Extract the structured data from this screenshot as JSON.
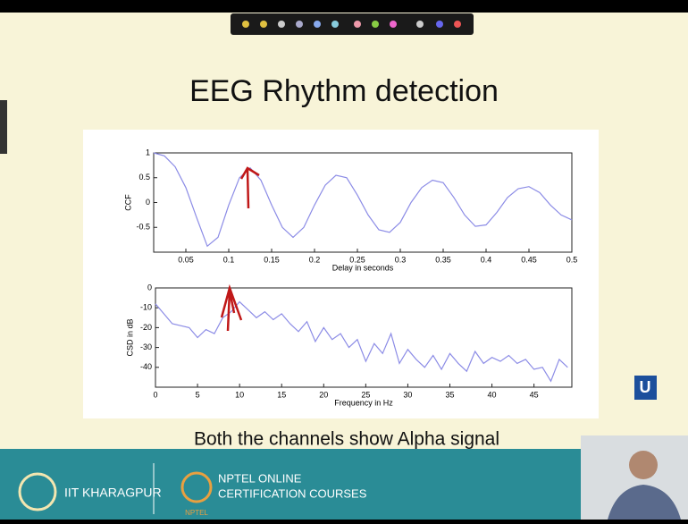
{
  "slide": {
    "title": "EEG Rhythm detection",
    "caption": "Both the channels show Alpha signal"
  },
  "footer": {
    "institute": "IIT KHARAGPUR",
    "program_line1": "NPTEL ONLINE",
    "program_line2": "CERTIFICATION COURSES",
    "logo_text": "NPTEL"
  },
  "chart_data": [
    {
      "type": "line",
      "x_label": "Delay in seconds",
      "y_label": "CCF",
      "color": "#8c8ce6",
      "x": [
        0.0125,
        0.025,
        0.0375,
        0.05,
        0.0625,
        0.075,
        0.0875,
        0.1,
        0.1125,
        0.125,
        0.1375,
        0.15,
        0.1625,
        0.175,
        0.1875,
        0.2,
        0.2125,
        0.225,
        0.2375,
        0.25,
        0.2625,
        0.275,
        0.2875,
        0.3,
        0.3125,
        0.325,
        0.3375,
        0.35,
        0.3625,
        0.375,
        0.3875,
        0.4,
        0.4125,
        0.425,
        0.4375,
        0.45,
        0.4625,
        0.475,
        0.4875,
        0.5
      ],
      "values": [
        1.0,
        0.94,
        0.72,
        0.3,
        -0.3,
        -0.88,
        -0.7,
        -0.05,
        0.5,
        0.7,
        0.45,
        -0.05,
        -0.5,
        -0.7,
        -0.5,
        -0.05,
        0.35,
        0.55,
        0.5,
        0.15,
        -0.25,
        -0.55,
        -0.6,
        -0.4,
        0.0,
        0.3,
        0.45,
        0.4,
        0.1,
        -0.25,
        -0.48,
        -0.45,
        -0.2,
        0.1,
        0.28,
        0.32,
        0.2,
        -0.05,
        -0.25,
        -0.35
      ],
      "xlim": [
        0.0125,
        0.5
      ],
      "ylim": [
        -1,
        1
      ],
      "xticks": [
        0.05,
        0.1,
        0.15,
        0.2,
        0.25,
        0.3,
        0.35,
        0.4,
        0.45,
        0.5
      ],
      "yticks": [
        -0.5,
        0,
        0.5,
        1
      ]
    },
    {
      "type": "line",
      "x_label": "Frequency in Hz",
      "y_label": "CSD in dB",
      "color": "#8c8ce6",
      "x": [
        0,
        1,
        2,
        3,
        4,
        5,
        6,
        7,
        8,
        9,
        10,
        11,
        12,
        13,
        14,
        15,
        16,
        17,
        18,
        19,
        20,
        21,
        22,
        23,
        24,
        25,
        26,
        27,
        28,
        29,
        30,
        31,
        32,
        33,
        34,
        35,
        36,
        37,
        38,
        39,
        40,
        41,
        42,
        43,
        44,
        45,
        46,
        47,
        48,
        49
      ],
      "values": [
        -8,
        -13,
        -18,
        -19,
        -20,
        -25,
        -21,
        -23,
        -15,
        -12,
        -7,
        -11,
        -15,
        -12,
        -16,
        -13,
        -18,
        -22,
        -17,
        -27,
        -20,
        -26,
        -23,
        -30,
        -26,
        -37,
        -28,
        -33,
        -23,
        -38,
        -31,
        -36,
        -40,
        -34,
        -41,
        -33,
        -38,
        -42,
        -32,
        -38,
        -35,
        -37,
        -34,
        -38,
        -36,
        -41,
        -40,
        -47,
        -36,
        -40
      ],
      "xlim": [
        0,
        49.5
      ],
      "ylim": [
        -50,
        0
      ],
      "xticks": [
        0,
        5,
        10,
        15,
        20,
        25,
        30,
        35,
        40,
        45
      ],
      "yticks": [
        -40,
        -30,
        -20,
        -10,
        0
      ]
    }
  ]
}
